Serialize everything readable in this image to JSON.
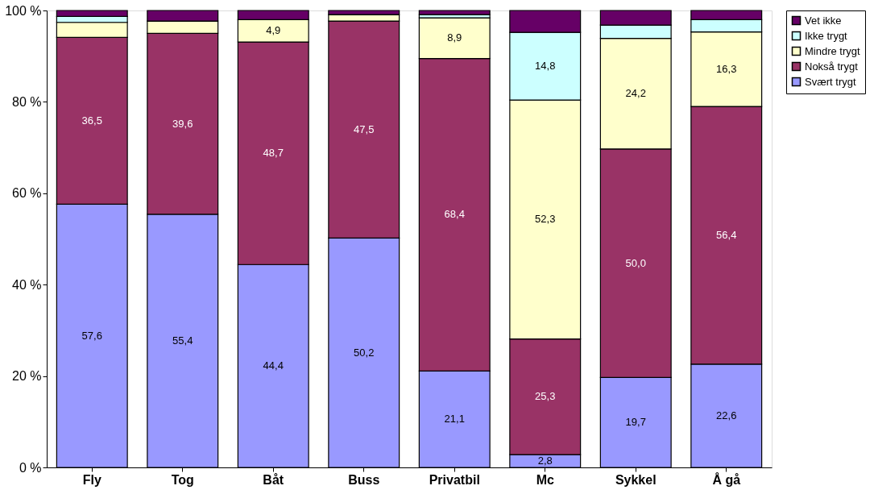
{
  "chart_data": {
    "type": "bar",
    "stacked": true,
    "categories": [
      "Fly",
      "Tog",
      "Båt",
      "Buss",
      "Privatbil",
      "Mc",
      "Sykkel",
      "Å gå"
    ],
    "ylim": [
      0,
      100
    ],
    "yticks": [
      {
        "value": 0,
        "label": "0 %"
      },
      {
        "value": 20,
        "label": "20 %"
      },
      {
        "value": 40,
        "label": "40 %"
      },
      {
        "value": 60,
        "label": "60 %"
      },
      {
        "value": 80,
        "label": "80 %"
      },
      {
        "value": 100,
        "label": "100 %"
      }
    ],
    "legend": "right",
    "grid": false,
    "series": [
      {
        "name": "Svært trygt",
        "color": "#9999ff",
        "values": [
          57.6,
          55.4,
          44.4,
          50.2,
          21.1,
          2.8,
          19.7,
          22.6
        ],
        "value_labels": [
          "57,6",
          "55,4",
          "44,4",
          "50,2",
          "21,1",
          "2,8",
          "19,7",
          "22,6"
        ]
      },
      {
        "name": "Nokså trygt",
        "color": "#993366",
        "values": [
          36.5,
          39.6,
          48.7,
          47.5,
          68.4,
          25.3,
          50.0,
          56.4
        ],
        "value_labels": [
          "36,5",
          "39,6",
          "48,7",
          "47,5",
          "68,4",
          "25,3",
          "50,0",
          "56,4"
        ]
      },
      {
        "name": "Mindre trygt",
        "color": "#ffffcc",
        "values": [
          3.3,
          2.7,
          4.9,
          1.4,
          8.9,
          52.3,
          24.2,
          16.3
        ],
        "value_labels": [
          null,
          null,
          "4,9",
          null,
          "8,9",
          "52,3",
          "24,2",
          "16,3"
        ]
      },
      {
        "name": "Ikke trygt",
        "color": "#ccffff",
        "values": [
          1.3,
          0,
          null,
          0,
          0.7,
          14.8,
          2.9,
          2.7
        ],
        "value_labels": [
          null,
          null,
          null,
          null,
          null,
          "14,8",
          null,
          null
        ]
      },
      {
        "name": "Vet ikke",
        "color": "#660066",
        "values": [
          1.3,
          2.3,
          2.0,
          0.9,
          0.9,
          4.8,
          3.2,
          2.0
        ],
        "value_labels": [
          null,
          null,
          null,
          null,
          null,
          null,
          null,
          null
        ]
      }
    ]
  }
}
